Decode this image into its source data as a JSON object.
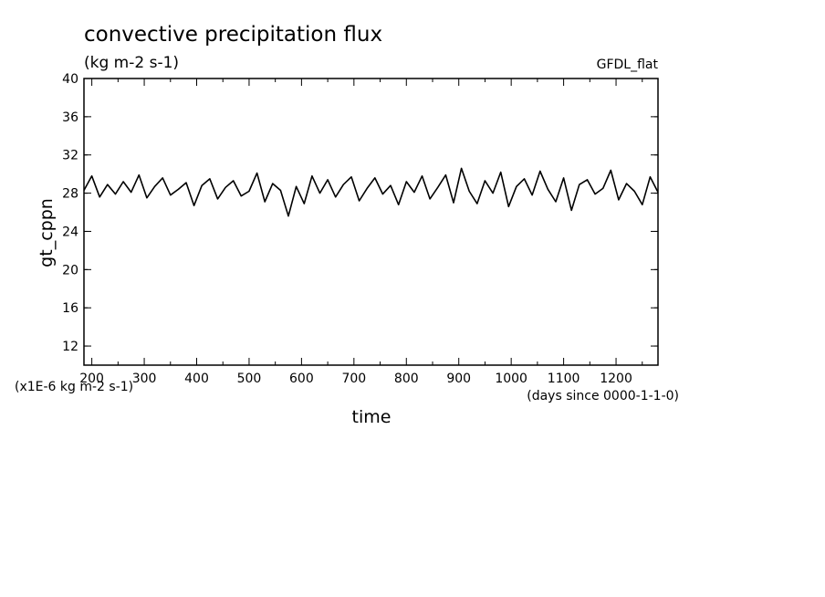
{
  "chart_data": {
    "type": "line",
    "title": "convective precipitation flux",
    "subtitle": "(kg m-2 s-1)",
    "source_label": "GFDL_flat",
    "xlabel": "time",
    "x_units_note": "(days since 0000-1-1-0)",
    "ylabel": "gt_cppn",
    "y_scale_note": "(x1E-6 kg m-2 s-1)",
    "xlim": [
      185,
      1280
    ],
    "ylim": [
      10,
      40
    ],
    "x_ticks": [
      200,
      300,
      400,
      500,
      600,
      700,
      800,
      900,
      1000,
      1100,
      1200
    ],
    "y_ticks": [
      12,
      16,
      20,
      24,
      28,
      32,
      36,
      40
    ],
    "grid": false,
    "series": [
      {
        "x": [
          185,
          200,
          215,
          230,
          245,
          260,
          275,
          290,
          305,
          320,
          335,
          350,
          365,
          380,
          395,
          410,
          425,
          440,
          455,
          470,
          485,
          500,
          515,
          530,
          545,
          560,
          575,
          590,
          605,
          620,
          635,
          650,
          665,
          680,
          695,
          710,
          725,
          740,
          755,
          770,
          785,
          800,
          815,
          830,
          845,
          860,
          875,
          890,
          905,
          920,
          935,
          950,
          965,
          980,
          995,
          1010,
          1025,
          1040,
          1055,
          1070,
          1085,
          1100,
          1115,
          1130,
          1145,
          1160,
          1175,
          1190,
          1205,
          1220,
          1235,
          1250,
          1265,
          1280
        ],
        "y": [
          28.3,
          29.8,
          27.6,
          28.9,
          27.9,
          29.2,
          28.1,
          29.9,
          27.5,
          28.7,
          29.6,
          27.8,
          28.4,
          29.1,
          26.7,
          28.8,
          29.5,
          27.4,
          28.6,
          29.3,
          27.7,
          28.2,
          30.1,
          27.1,
          29.0,
          28.3,
          25.6,
          28.7,
          26.9,
          29.8,
          28.0,
          29.4,
          27.6,
          28.9,
          29.7,
          27.2,
          28.5,
          29.6,
          27.9,
          28.8,
          26.8,
          29.2,
          28.1,
          29.8,
          27.4,
          28.6,
          29.9,
          27.0,
          30.6,
          28.2,
          26.9,
          29.3,
          28.0,
          30.2,
          26.6,
          28.7,
          29.5,
          27.8,
          30.3,
          28.4,
          27.1,
          29.6,
          26.2,
          28.9,
          29.4,
          27.9,
          28.5,
          30.4,
          27.3,
          29.0,
          28.2,
          26.8,
          29.7,
          28.1
        ],
        "color": "#000000"
      }
    ]
  }
}
